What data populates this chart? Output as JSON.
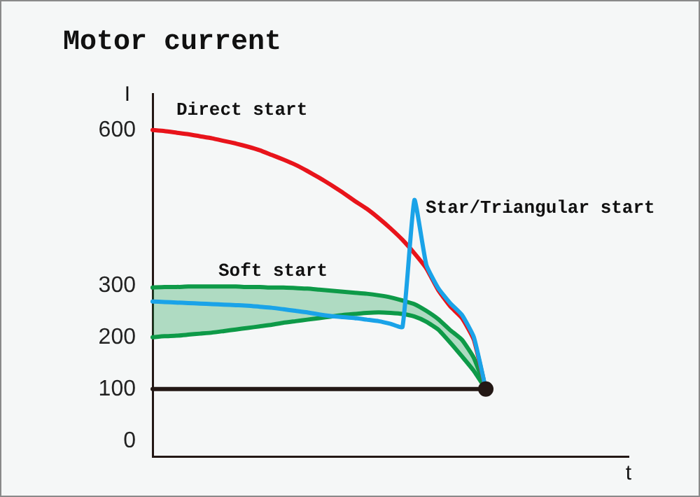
{
  "chart_data": {
    "type": "line",
    "title": "Motor current",
    "xlabel": "t",
    "ylabel": "I",
    "categories": [
      null,
      null,
      null,
      null,
      null,
      null,
      null,
      null,
      null,
      null,
      null,
      null,
      null,
      null,
      null,
      null,
      null,
      null,
      null,
      null,
      null,
      null,
      null,
      null,
      null,
      null,
      null,
      null,
      null,
      null,
      null,
      null,
      null,
      null,
      null,
      null,
      null,
      null,
      null,
      null,
      null
    ],
    "ylim": [
      -30,
      670
    ],
    "yticks": [
      0,
      100,
      200,
      300,
      600
    ],
    "tick_labels": "y",
    "grid": false,
    "legend": false,
    "marker": "none",
    "series": [
      {
        "color": "#231815",
        "values": [
          100,
          100,
          100,
          100,
          100,
          100,
          100,
          100,
          100,
          100,
          100,
          100,
          100,
          100,
          100,
          100,
          100,
          100,
          100,
          100,
          100,
          100,
          100,
          100,
          100,
          100,
          100,
          100,
          100,
          null,
          null,
          null,
          null,
          null,
          null,
          null,
          null,
          null,
          null,
          null,
          null
        ]
      },
      {
        "color": "#0e9a48",
        "values": [
          200,
          202,
          203,
          205,
          207,
          209,
          212,
          215,
          218,
          221,
          224,
          228,
          231,
          234,
          237,
          240,
          243,
          245,
          247,
          248,
          247,
          245,
          240,
          230,
          215,
          190,
          163,
          135,
          100,
          null,
          null,
          null,
          null,
          null,
          null,
          null,
          null,
          null,
          null,
          null,
          null
        ]
      },
      {
        "name": "Soft start",
        "color": "#0e9a48",
        "values": [
          296,
          297,
          297,
          298,
          298,
          298,
          298,
          298,
          297,
          297,
          296,
          296,
          295,
          294,
          292,
          290,
          288,
          286,
          284,
          281,
          277,
          271,
          264,
          251,
          235,
          214,
          195,
          160,
          100,
          null,
          null,
          null,
          null,
          null,
          null,
          null,
          null,
          null,
          null,
          null,
          null
        ],
        "lower": [
          200,
          202,
          203,
          205,
          207,
          209,
          212,
          215,
          218,
          221,
          224,
          228,
          231,
          234,
          237,
          240,
          243,
          245,
          247,
          248,
          247,
          245,
          240,
          230,
          215,
          190,
          163,
          135,
          100,
          null,
          null,
          null,
          null,
          null,
          null,
          null,
          null,
          null,
          null,
          null,
          null
        ],
        "upper": [
          296,
          297,
          297,
          298,
          298,
          298,
          298,
          298,
          297,
          297,
          296,
          296,
          295,
          294,
          292,
          290,
          288,
          286,
          284,
          281,
          277,
          271,
          264,
          251,
          235,
          214,
          195,
          160,
          100,
          null,
          null,
          null,
          null,
          null,
          null,
          null,
          null,
          null,
          null,
          null,
          null
        ]
      },
      {
        "name": "Direct start",
        "color": "#e8141b",
        "values": [
          600,
          598,
          595,
          592,
          588,
          584,
          579,
          574,
          568,
          561,
          552,
          543,
          533,
          521,
          508,
          494,
          479,
          463,
          448,
          430,
          410,
          388,
          362,
          333,
          291,
          260,
          237,
          195,
          100,
          null,
          null,
          null,
          null,
          null,
          null,
          null,
          null,
          null,
          null,
          null,
          null
        ]
      },
      {
        "name": "Star/Triangular start",
        "color": "#1aa3e8",
        "values": [
          269,
          268,
          267,
          266,
          265,
          264,
          263,
          262,
          261,
          259,
          257,
          254,
          251,
          248,
          244,
          241,
          239,
          237,
          234,
          231,
          226,
          220,
          465,
          340,
          295,
          266,
          243,
          200,
          100,
          null,
          null,
          null,
          null,
          null,
          null,
          null,
          null,
          null,
          null,
          null,
          null
        ]
      },
      {
        "type": "scatter",
        "color": "#231815",
        "marker": "circle",
        "values": [
          null,
          null,
          null,
          null,
          null,
          null,
          null,
          null,
          null,
          null,
          null,
          null,
          null,
          null,
          null,
          null,
          null,
          null,
          null,
          null,
          null,
          null,
          null,
          null,
          null,
          null,
          null,
          null,
          100,
          null,
          null,
          null,
          null,
          null,
          null,
          null,
          null,
          null,
          null,
          null,
          null
        ]
      }
    ]
  }
}
